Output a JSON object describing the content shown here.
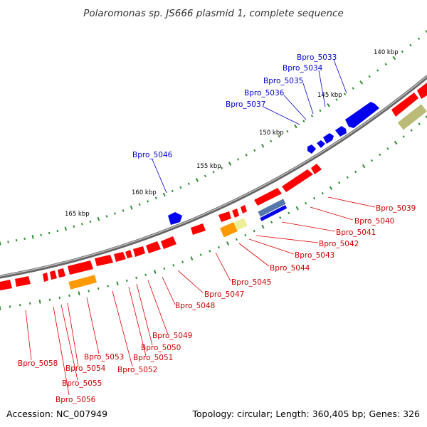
{
  "title": "Polaromonas sp. JS666 plasmid 1, complete sequence",
  "footer": {
    "accession": "Accession: NC_007949",
    "summary": "Topology: circular; Length: 360,405 bp; Genes: 326"
  },
  "colors": {
    "forward_gene": "#ff0000",
    "reverse_gene": "#0000ee",
    "backbone": "#888888",
    "gc_tick": "#2f8f2f",
    "orange_feature": "#ff9900",
    "pale_yellow_feature": "#eeee99",
    "olive_feature": "#bbbb77",
    "steelblue_feature": "#5577aa"
  },
  "scale_labels": [
    "140 kbp",
    "145 kbp",
    "150 kbp",
    "155 kbp",
    "160 kbp",
    "165 kbp"
  ],
  "genes_reverse": [
    "Bpro_5033",
    "Bpro_5034",
    "Bpro_5035",
    "Bpro_5036",
    "Bpro_5037",
    "Bpro_5046"
  ],
  "genes_forward": [
    "Bpro_5039",
    "Bpro_5040",
    "Bpro_5041",
    "Bpro_5042",
    "Bpro_5043",
    "Bpro_5044",
    "Bpro_5045",
    "Bpro_5047",
    "Bpro_5048",
    "Bpro_5049",
    "Bpro_5050",
    "Bpro_5051",
    "Bpro_5052",
    "Bpro_5053",
    "Bpro_5054",
    "Bpro_5055",
    "Bpro_5056",
    "Bpro_5058"
  ]
}
